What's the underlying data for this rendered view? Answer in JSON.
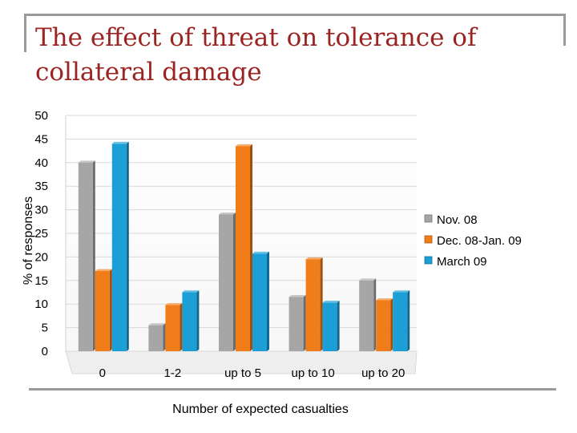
{
  "slide": {
    "title": "The effect of threat on tolerance of collateral damage"
  },
  "chart_data": {
    "type": "bar",
    "title": "The effect of threat on tolerance of collateral damage",
    "xlabel": "Number of expected casualties",
    "ylabel": "% of responses",
    "categories": [
      "0",
      "1-2",
      "up to 5",
      "up to 10",
      "up to 20"
    ],
    "ylim": [
      0,
      50
    ],
    "yticks": [
      0,
      5,
      10,
      15,
      20,
      25,
      30,
      35,
      40,
      45,
      50
    ],
    "grid": true,
    "legend_position": "right",
    "series": [
      {
        "name": "Nov. 08",
        "color": "#a6a6a6",
        "values": [
          40,
          5.5,
          29,
          11.5,
          15
        ]
      },
      {
        "name": "Dec. 08-Jan. 09",
        "color": "#f07d1a",
        "values": [
          17,
          9.8,
          43.5,
          19.5,
          10.8
        ]
      },
      {
        "name": "March 09",
        "color": "#1c9fd6",
        "values": [
          44,
          12.5,
          20.7,
          10.3,
          12.5
        ]
      }
    ]
  }
}
